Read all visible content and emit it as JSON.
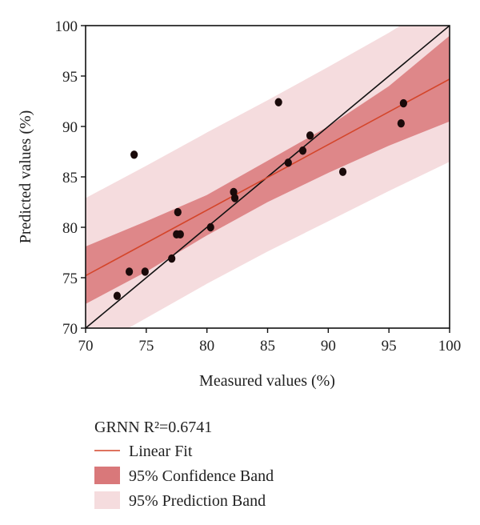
{
  "chart_data": {
    "type": "scatter",
    "xlabel": "Measured values (%)",
    "ylabel": "Predicted values (%)",
    "xlim": [
      70,
      100
    ],
    "ylim": [
      70,
      100
    ],
    "x_ticks": [
      "70",
      "75",
      "80",
      "85",
      "90",
      "95",
      "100"
    ],
    "y_ticks": [
      "70",
      "75",
      "80",
      "85",
      "90",
      "95",
      "100"
    ],
    "grid": false,
    "series": [
      {
        "x": [
          72.6,
          73.6,
          74.0,
          74.9,
          77.1,
          77.5,
          77.6,
          77.8,
          80.3,
          82.2,
          82.3,
          85.9,
          86.7,
          87.9,
          88.5,
          91.2,
          96.0,
          96.2
        ],
        "y": [
          73.2,
          75.6,
          87.2,
          75.6,
          76.9,
          79.3,
          81.5,
          79.3,
          80.0,
          83.5,
          82.9,
          92.4,
          86.4,
          87.6,
          89.1,
          85.5,
          90.3,
          92.3
        ]
      }
    ],
    "identity_line": {
      "x": [
        70,
        100
      ],
      "y": [
        70,
        100
      ],
      "color": "#111111"
    },
    "linear_fit": {
      "x": [
        70,
        100
      ],
      "y": [
        75.2,
        94.7
      ],
      "color": "#d4452a"
    },
    "confidence_band": {
      "x": [
        70,
        75,
        80,
        85,
        90,
        95,
        100
      ],
      "lower": [
        72.4,
        75.6,
        79.2,
        82.5,
        85.4,
        88.1,
        90.5
      ],
      "upper": [
        78.1,
        80.6,
        83.2,
        86.6,
        90.0,
        94.0,
        99.0
      ],
      "color": "#d9787a"
    },
    "prediction_band": {
      "x": [
        70,
        75,
        80,
        85,
        90,
        95,
        100
      ],
      "lower": [
        67.6,
        71.0,
        74.4,
        77.6,
        80.6,
        83.6,
        86.5
      ],
      "upper": [
        82.9,
        86.1,
        89.4,
        92.6,
        95.9,
        99.3,
        103.0
      ],
      "color": "#f5dcde"
    },
    "legend": {
      "title": "GRNN R²=0.6741",
      "placement": "bottom",
      "entries": [
        "Linear Fit",
        "95% Confidence Band",
        "95% Prediction Band"
      ]
    }
  }
}
